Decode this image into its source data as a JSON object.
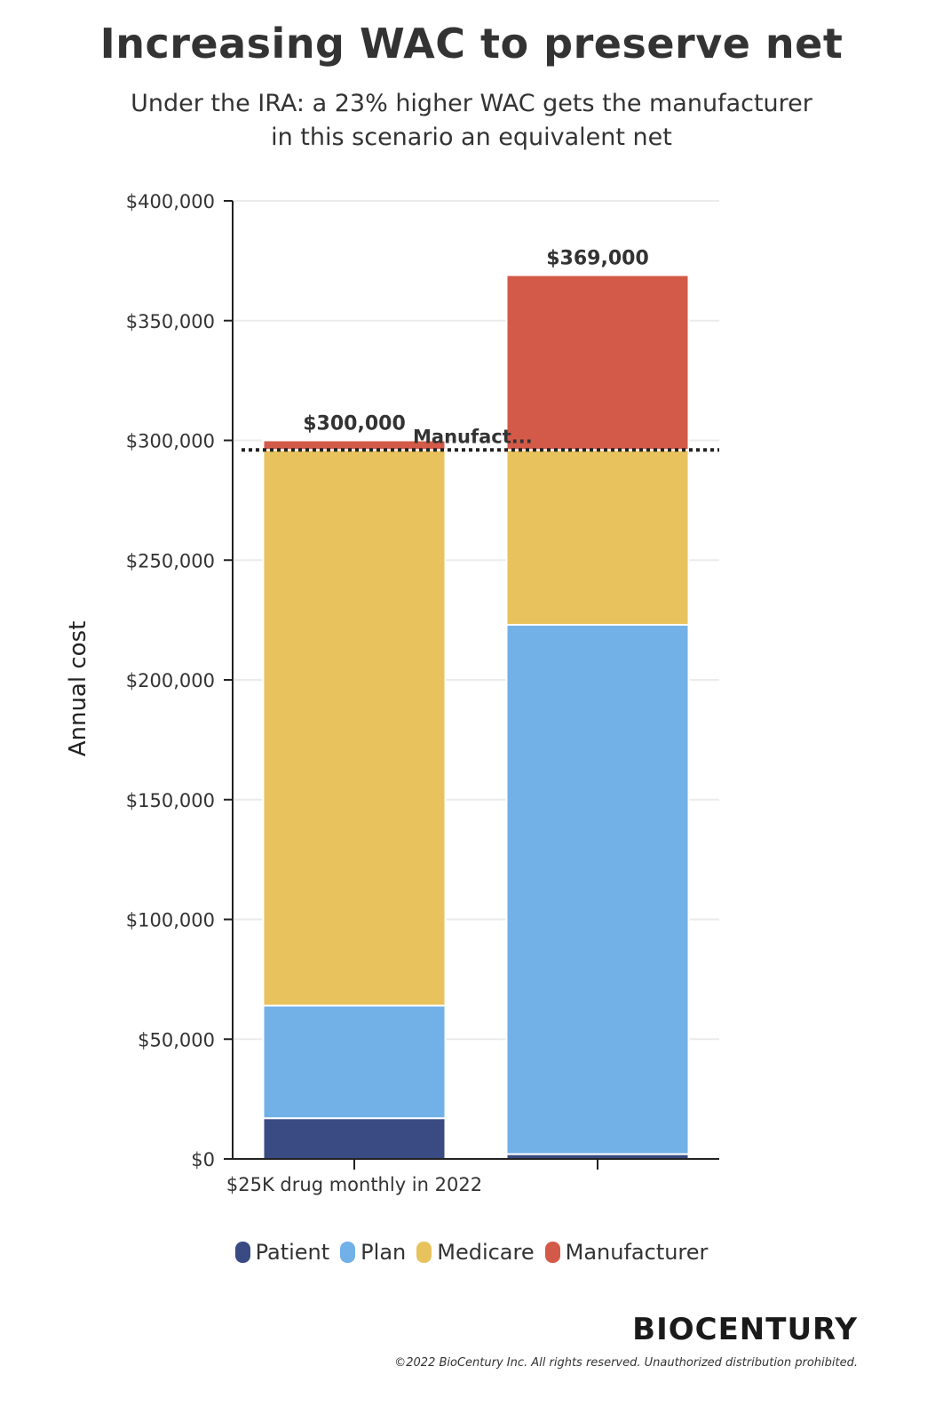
{
  "title": "Increasing WAC to preserve net",
  "subtitle_line1": "Under the IRA: a 23% higher WAC gets the manufacturer",
  "subtitle_line2": "in this scenario an equivalent net",
  "chart_data": {
    "type": "bar",
    "stacked": true,
    "categories": [
      "$25K drug monthly in 2022",
      ""
    ],
    "series": [
      {
        "name": "Patient",
        "color": "#3a4a82",
        "values": [
          17000,
          2000
        ]
      },
      {
        "name": "Plan",
        "color": "#72b0e8",
        "values": [
          47000,
          221000
        ]
      },
      {
        "name": "Medicare",
        "color": "#e8c25d",
        "values": [
          232000,
          73000
        ]
      },
      {
        "name": "Manufacturer",
        "color": "#d35a48",
        "values": [
          4000,
          73000
        ]
      }
    ],
    "totals": [
      300000,
      369000
    ],
    "total_labels": [
      "$300,000",
      "$369,000"
    ],
    "reference_line": {
      "value": 296000,
      "label": "Manufact..."
    },
    "ylabel": "Annual cost",
    "xlabel": "",
    "ylim": [
      0,
      400000
    ],
    "yticks": [
      0,
      50000,
      100000,
      150000,
      200000,
      250000,
      300000,
      350000,
      400000
    ],
    "ytick_labels": [
      "$0",
      "$50,000",
      "$100,000",
      "$150,000",
      "$200,000",
      "$250,000",
      "$300,000",
      "$350,000",
      "$400,000"
    ],
    "grid": true,
    "legend_position": "bottom"
  },
  "brand": "BIOCENTURY",
  "copyright": "©2022 BioCentury Inc. All rights reserved.  Unauthorized distribution prohibited."
}
